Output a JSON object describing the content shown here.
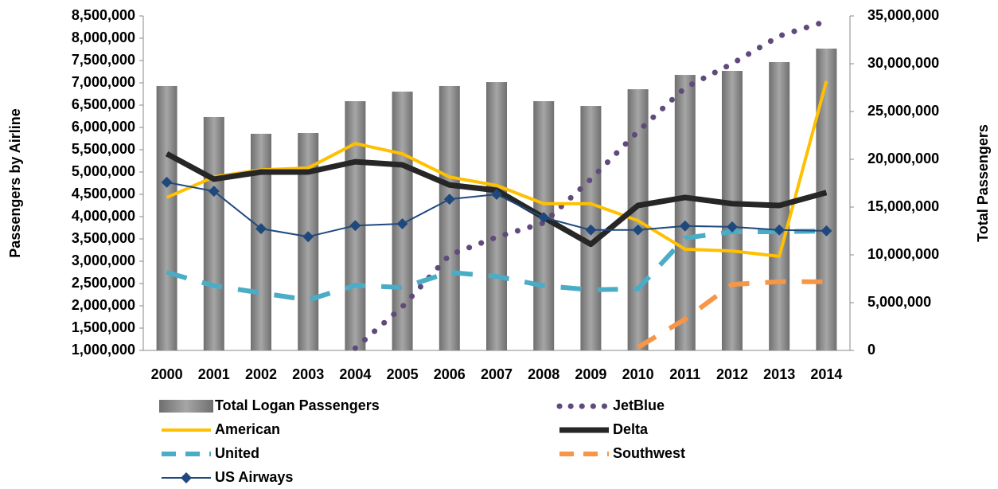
{
  "chart_data": {
    "type": "combo",
    "categories": [
      "2000",
      "2001",
      "2002",
      "2003",
      "2004",
      "2005",
      "2006",
      "2007",
      "2008",
      "2009",
      "2010",
      "2011",
      "2012",
      "2013",
      "2014"
    ],
    "ylabel": "Passengers by Airline",
    "y2label": "Total Passengers",
    "ylim": [
      1000000,
      8500000
    ],
    "yticks": [
      {
        "value": 1000000,
        "label": "1,000,000"
      },
      {
        "value": 1500000,
        "label": "1,500,000"
      },
      {
        "value": 2000000,
        "label": "2,000,000"
      },
      {
        "value": 2500000,
        "label": "2,500,000"
      },
      {
        "value": 3000000,
        "label": "3,000,000"
      },
      {
        "value": 3500000,
        "label": "3,500,000"
      },
      {
        "value": 4000000,
        "label": "4,000,000"
      },
      {
        "value": 4500000,
        "label": "4,500,000"
      },
      {
        "value": 5000000,
        "label": "5,000,000"
      },
      {
        "value": 5500000,
        "label": "5,500,000"
      },
      {
        "value": 6000000,
        "label": "6,000,000"
      },
      {
        "value": 6500000,
        "label": "6,500,000"
      },
      {
        "value": 7000000,
        "label": "7,000,000"
      },
      {
        "value": 7500000,
        "label": "7,500,000"
      },
      {
        "value": 8000000,
        "label": "8,000,000"
      },
      {
        "value": 8500000,
        "label": "8,500,000"
      }
    ],
    "y2lim": [
      0,
      35000000
    ],
    "y2ticks": [
      0,
      {
        "value": 5000000,
        "label": "5,000,000"
      },
      {
        "value": 10000000,
        "label": "10,000,000"
      },
      {
        "value": 15000000,
        "label": "15,000,000"
      },
      {
        "value": 20000000,
        "label": "20,000,000"
      },
      {
        "value": 25000000,
        "label": "25,000,000"
      },
      {
        "value": 30000000,
        "label": "30,000,000"
      },
      {
        "value": 35000000,
        "label": "35,000,000"
      }
    ],
    "series": [
      {
        "name": "Total Logan Passengers",
        "type": "bar",
        "axis": "y2",
        "color": "#8c8c8c",
        "values": [
          27670000,
          24420000,
          22670000,
          22750000,
          26080000,
          27080000,
          27670000,
          28080000,
          26080000,
          25580000,
          27330000,
          28830000,
          29250000,
          30170000,
          31580000
        ]
      },
      {
        "name": "JetBlue",
        "type": "line",
        "style": "dotted",
        "color": "#604a7b",
        "values": [
          null,
          null,
          null,
          null,
          1050000,
          1980000,
          3140000,
          3540000,
          3860000,
          4840000,
          5910000,
          6890000,
          7430000,
          8050000,
          8380000
        ]
      },
      {
        "name": "American",
        "type": "line",
        "style": "solid",
        "color": "#ffc000",
        "values": [
          4430000,
          4890000,
          5050000,
          5090000,
          5640000,
          5410000,
          4890000,
          4700000,
          4290000,
          4290000,
          3910000,
          3270000,
          3230000,
          3110000,
          7040000
        ]
      },
      {
        "name": "Delta",
        "type": "line",
        "style": "thick",
        "color": "#262626",
        "values": [
          5410000,
          4840000,
          5000000,
          5000000,
          5230000,
          5160000,
          4710000,
          4590000,
          3980000,
          3380000,
          4250000,
          4430000,
          4290000,
          4250000,
          4540000
        ]
      },
      {
        "name": "United",
        "type": "line",
        "style": "dashed",
        "color": "#4bacc6",
        "values": [
          2750000,
          2450000,
          2290000,
          2130000,
          2460000,
          2410000,
          2750000,
          2660000,
          2450000,
          2360000,
          2380000,
          3520000,
          3660000,
          3660000,
          3680000
        ]
      },
      {
        "name": "Southwest",
        "type": "line",
        "style": "dashed",
        "color": "#f79646",
        "values": [
          null,
          null,
          null,
          null,
          null,
          null,
          null,
          null,
          null,
          null,
          1070000,
          1700000,
          2480000,
          2540000,
          2540000
        ]
      },
      {
        "name": "US Airways",
        "type": "line",
        "style": "marker",
        "color": "#1f497d",
        "values": [
          4770000,
          4570000,
          3730000,
          3550000,
          3800000,
          3840000,
          4390000,
          4500000,
          3980000,
          3700000,
          3700000,
          3790000,
          3770000,
          3700000,
          3680000
        ]
      }
    ]
  }
}
